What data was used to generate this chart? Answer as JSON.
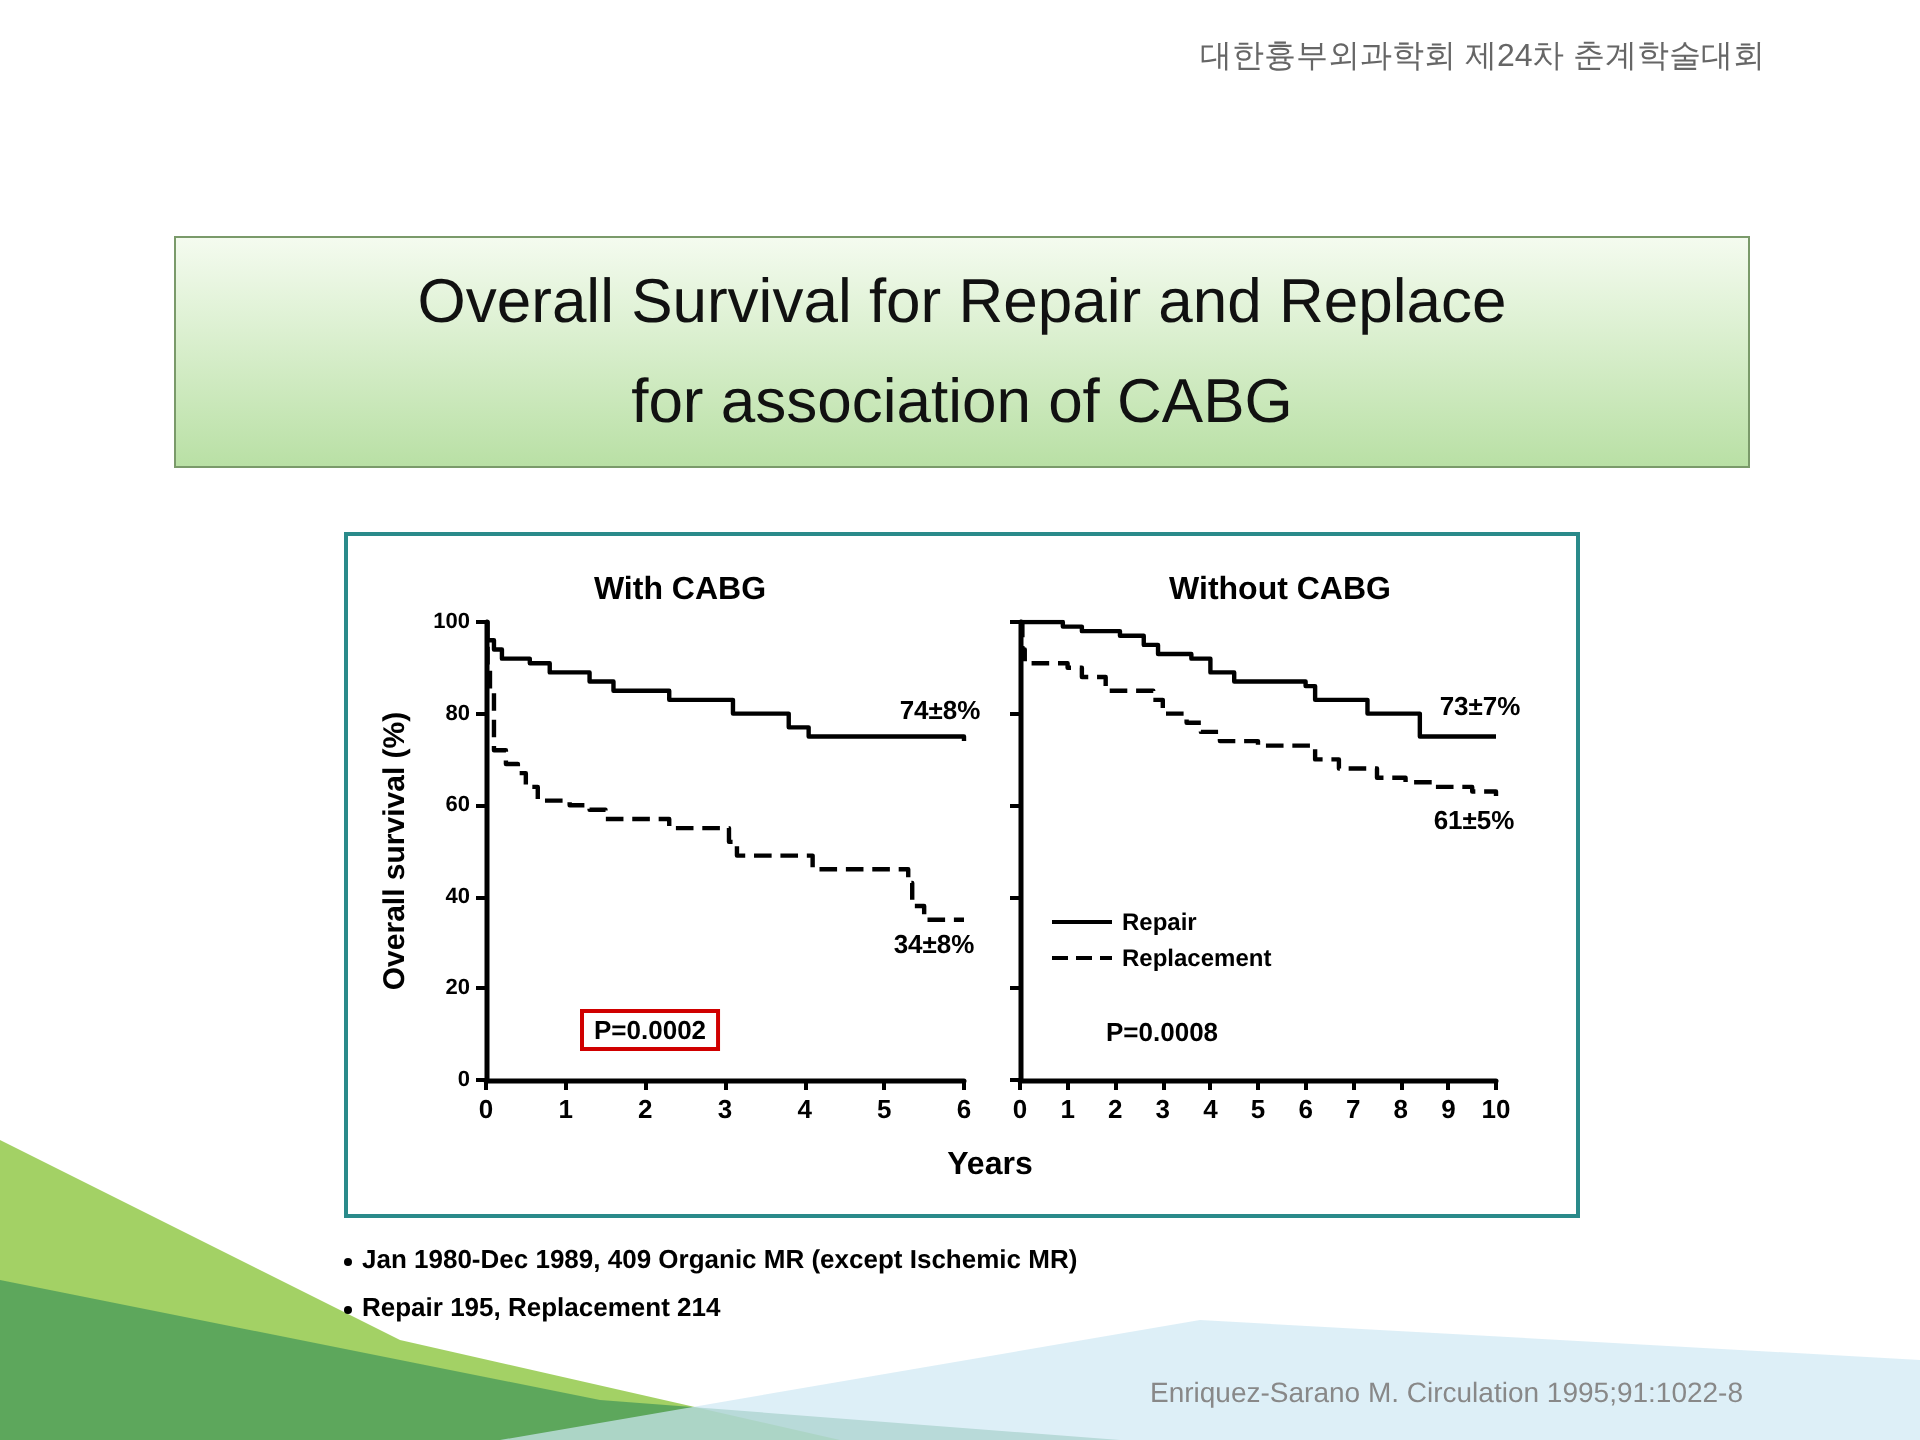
{
  "chart_data": [
    {
      "type": "step",
      "title": "Overall Survival for Repair and Replace\nfor association of CABG",
      "subtitle": "With CABG",
      "xlabel": "Years",
      "ylabel": "Overall survival (%)",
      "xlim": [
        0,
        6
      ],
      "xticks": [
        0,
        1,
        2,
        3,
        4,
        5,
        6
      ],
      "ylim": [
        0,
        100
      ],
      "yticks": [
        0,
        20,
        40,
        60,
        80,
        100
      ],
      "marker": "none",
      "series": [
        {
          "color": "#000000",
          "line_style": "solid",
          "x": [
            0,
            0.1,
            0.2,
            0.55,
            0.8,
            1.3,
            1.6,
            2.3,
            3.1,
            3.8,
            4.05,
            6
          ],
          "values": [
            96,
            94,
            92,
            91,
            89,
            87,
            85,
            83,
            80,
            77,
            75,
            74
          ]
        },
        {
          "color": "#000000",
          "line_style": "dashed",
          "x": [
            0,
            0.02,
            0.05,
            0.1,
            0.25,
            0.4,
            0.5,
            0.65,
            1.05,
            1.3,
            1.5,
            2.3,
            3.05,
            3.15,
            4.1,
            5.3,
            5.35,
            5.5,
            6
          ],
          "values": [
            100,
            90,
            85,
            72,
            69,
            67,
            64,
            61,
            60,
            59,
            57,
            55,
            52,
            49,
            46,
            43,
            38,
            35,
            35
          ]
        }
      ],
      "annotations": [
        "74±8%",
        "34±8%",
        "P=0.0002",
        "대한흉부외과학회 제24차 춘계학술대회",
        "Jan 1980-Dec 1989, 409 Organic MR (except Ischemic MR)",
        "Repair 195, Replacement 214",
        "Enriquez-Sarano M. Circulation 1995;91:1022-8"
      ]
    },
    {
      "type": "step",
      "subtitle": "Without CABG",
      "tick_labels": "x",
      "xlim": [
        0,
        10
      ],
      "xticks": [
        0,
        1,
        2,
        3,
        4,
        5,
        6,
        7,
        8,
        9,
        10
      ],
      "ylim": [
        0,
        100
      ],
      "yticks": [
        0,
        20,
        40,
        60,
        80,
        100
      ],
      "marker": "none",
      "legend": "bottom left",
      "series": [
        {
          "name": "Repair",
          "color": "#000000",
          "line_style": "solid",
          "x": [
            0,
            0.9,
            1.3,
            2.1,
            2.6,
            2.9,
            3.6,
            4.0,
            4.5,
            6.0,
            6.2,
            7.3,
            8.4,
            10
          ],
          "values": [
            100,
            99,
            98,
            97,
            95,
            93,
            92,
            89,
            87,
            86,
            83,
            80,
            75,
            75
          ]
        },
        {
          "name": "Replacement",
          "color": "#000000",
          "line_style": "dashed",
          "x": [
            0,
            0.05,
            0.1,
            1.0,
            1.3,
            1.8,
            2.8,
            3.0,
            3.5,
            3.8,
            4.2,
            5.0,
            6.2,
            6.7,
            7.5,
            8.1,
            8.7,
            9.5,
            10
          ],
          "values": [
            100,
            94,
            91,
            90,
            88,
            85,
            83,
            80,
            78,
            76,
            74,
            73,
            70,
            68,
            66,
            65,
            64,
            63,
            62
          ]
        }
      ],
      "annotations": [
        "73±7%",
        "61±5%",
        "P=0.0008"
      ]
    }
  ]
}
